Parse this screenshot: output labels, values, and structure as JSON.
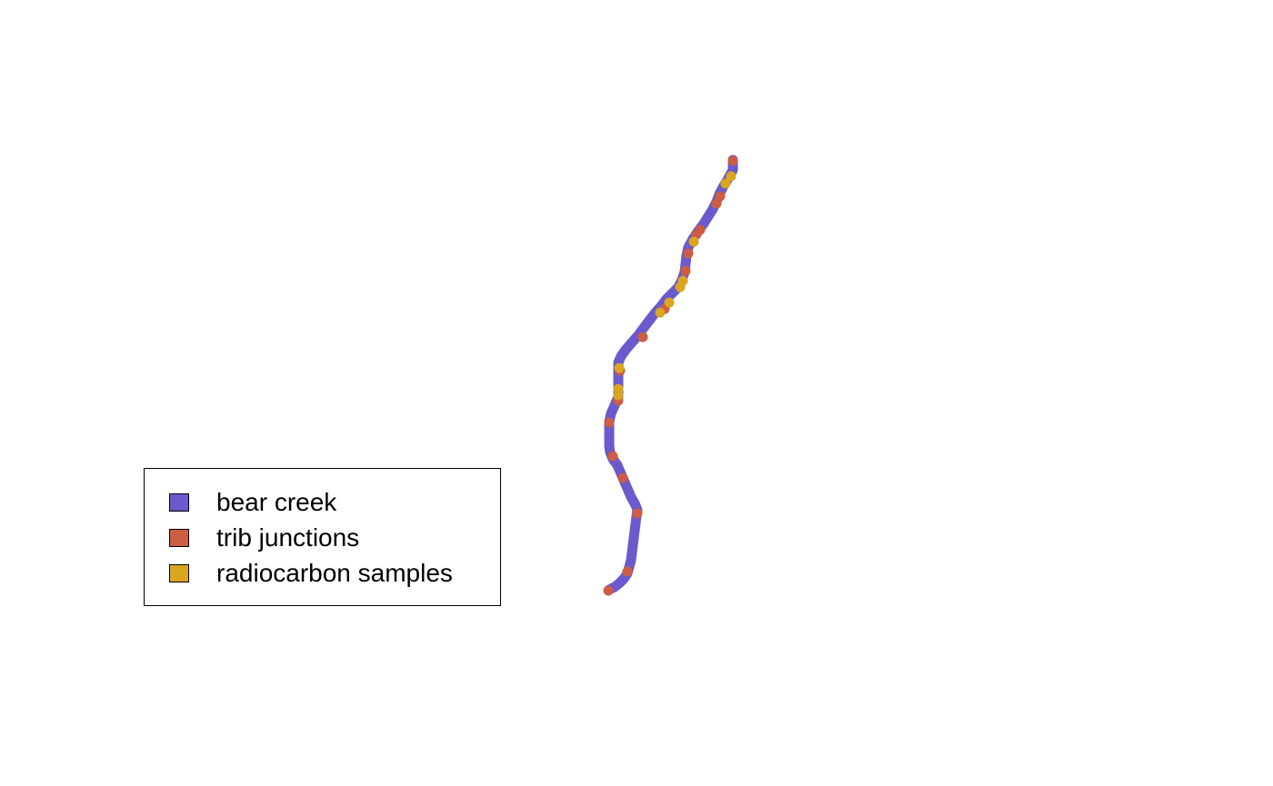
{
  "map": {
    "legend": [
      {
        "label": "bear creek",
        "color": "#6a5acd"
      },
      {
        "label": "trib junctions",
        "color": "#cd5c45"
      },
      {
        "label": "radiocarbon samples",
        "color": "#daa520"
      }
    ],
    "colors": {
      "stream": "#6a5acd",
      "trib_junction": "#cd5c45",
      "radiocarbon_sample": "#daa520"
    }
  }
}
